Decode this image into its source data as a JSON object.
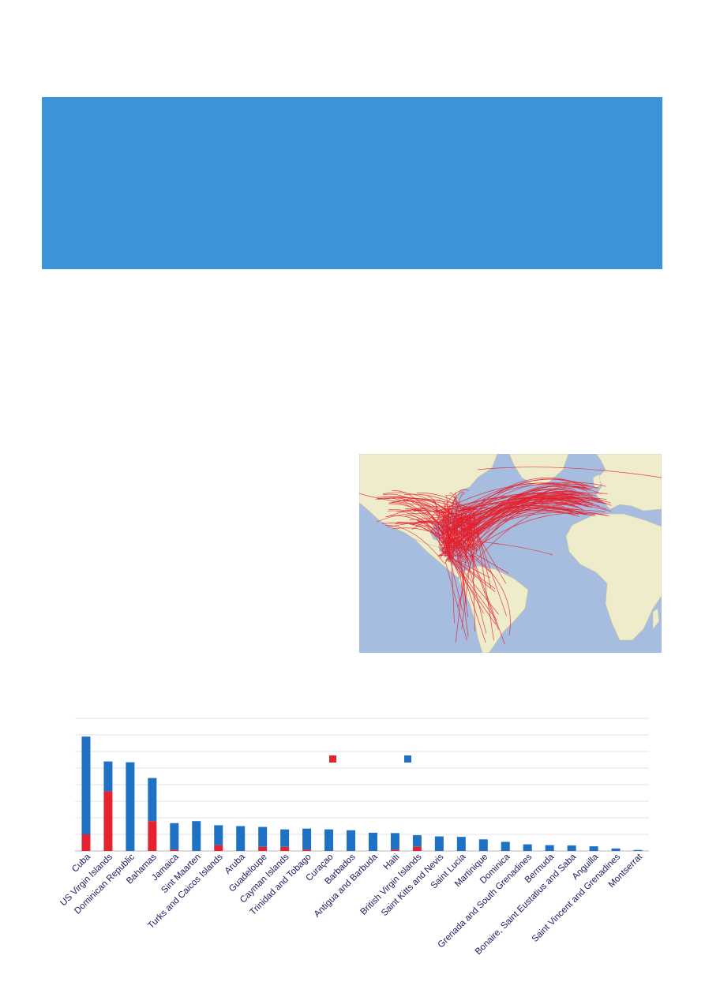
{
  "chart_data": {
    "type": "bar",
    "stacked": true,
    "categories": [
      "Cuba",
      "US Virgin Islands",
      "Dominican Republic",
      "Bahamas",
      "Jamaica",
      "Sint Maarten",
      "Turks and Caicos Islands",
      "Aruba",
      "Guadeloupe",
      "Cayman Islands",
      "Trinidad and Tobago",
      "Curaçao",
      "Barbados",
      "Antigua and Barbuda",
      "Haiti",
      "British Virgin Islands",
      "Saint Kitts and Nevis",
      "Saint Lucia",
      "Martinique",
      "Dominica",
      "Grenada and South Grenadines",
      "Bermuda",
      "Bonaire, Saint Eustatius and Saba",
      "Anguilla",
      "Saint Vincent and Grenadines",
      "Montserrat"
    ],
    "series": [
      {
        "color": "#e3232d",
        "values": [
          1.0,
          3.6,
          0,
          1.8,
          0.08,
          0,
          0.35,
          0,
          0.25,
          0.25,
          0.08,
          0,
          0,
          0,
          0.08,
          0.25,
          0,
          0,
          0,
          0,
          0,
          0,
          0,
          0,
          0,
          0
        ]
      },
      {
        "color": "#1f71c3",
        "values": [
          5.9,
          1.8,
          5.35,
          2.6,
          1.6,
          1.8,
          1.2,
          1.5,
          1.2,
          1.05,
          1.27,
          1.3,
          1.25,
          1.1,
          1.0,
          0.7,
          0.88,
          0.85,
          0.7,
          0.55,
          0.4,
          0.35,
          0.33,
          0.28,
          0.15,
          0.06
        ]
      }
    ],
    "ylim": [
      0,
      8
    ],
    "grid": true,
    "legend": "top-center"
  },
  "map": {
    "ocean_color": "#a6bde0",
    "land_color": "#efeccc",
    "route_color": "#e41e2b"
  }
}
